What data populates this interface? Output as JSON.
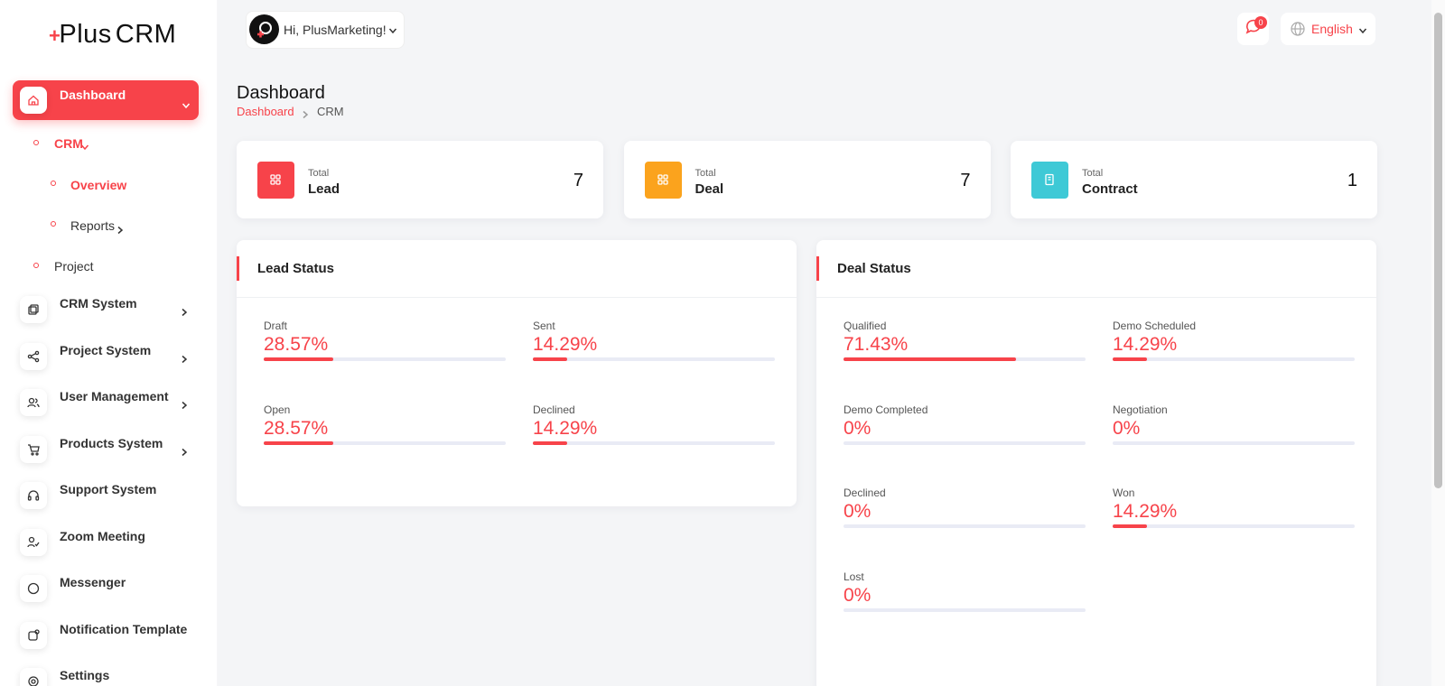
{
  "brand": {
    "prefix": "Plus",
    "suffix": "CRM"
  },
  "header": {
    "greeting": "Hi, PlusMarketing!",
    "notification_count": 0,
    "language": "English"
  },
  "sidebar": {
    "active": {
      "label": "Dashboard",
      "children": [
        {
          "label": "CRM",
          "children": [
            {
              "label": "Overview",
              "active": true
            },
            {
              "label": "Reports",
              "active": false
            }
          ]
        },
        {
          "label": "Project"
        }
      ]
    },
    "items": [
      {
        "label": "CRM System",
        "submenu": true
      },
      {
        "label": "Project System",
        "submenu": true
      },
      {
        "label": "User Management",
        "submenu": true
      },
      {
        "label": "Products System",
        "submenu": true
      },
      {
        "label": "Support System",
        "submenu": false
      },
      {
        "label": "Zoom Meeting",
        "submenu": false
      },
      {
        "label": "Messenger",
        "submenu": false
      },
      {
        "label": "Notification Template",
        "submenu": false
      },
      {
        "label": "Settings",
        "submenu": false
      }
    ]
  },
  "page": {
    "title": "Dashboard",
    "breadcrumb": [
      "Dashboard",
      "CRM"
    ]
  },
  "stats": [
    {
      "caption": "Total",
      "name": "Lead",
      "value": 7,
      "color": "#f7434a"
    },
    {
      "caption": "Total",
      "name": "Deal",
      "value": 7,
      "color": "#fba31d"
    },
    {
      "caption": "Total",
      "name": "Contract",
      "value": 1,
      "color": "#3ec9d6"
    }
  ],
  "panels": [
    {
      "title": "Lead Status",
      "items": [
        {
          "label": "Draft",
          "value": 28.57,
          "value_label": "28.57%"
        },
        {
          "label": "Sent",
          "value": 14.29,
          "value_label": "14.29%"
        },
        {
          "label": "Open",
          "value": 28.57,
          "value_label": "28.57%"
        },
        {
          "label": "Declined",
          "value": 14.29,
          "value_label": "14.29%"
        }
      ]
    },
    {
      "title": "Deal Status",
      "items": [
        {
          "label": "Qualified",
          "value": 71.43,
          "value_label": "71.43%"
        },
        {
          "label": "Demo Scheduled",
          "value": 14.29,
          "value_label": "14.29%"
        },
        {
          "label": "Demo Completed",
          "value": 0,
          "value_label": "0%"
        },
        {
          "label": "Negotiation",
          "value": 0,
          "value_label": "0%"
        },
        {
          "label": "Declined",
          "value": 0,
          "value_label": "0%"
        },
        {
          "label": "Won",
          "value": 14.29,
          "value_label": "14.29%"
        },
        {
          "label": "Lost",
          "value": 0,
          "value_label": "0%"
        }
      ]
    }
  ]
}
